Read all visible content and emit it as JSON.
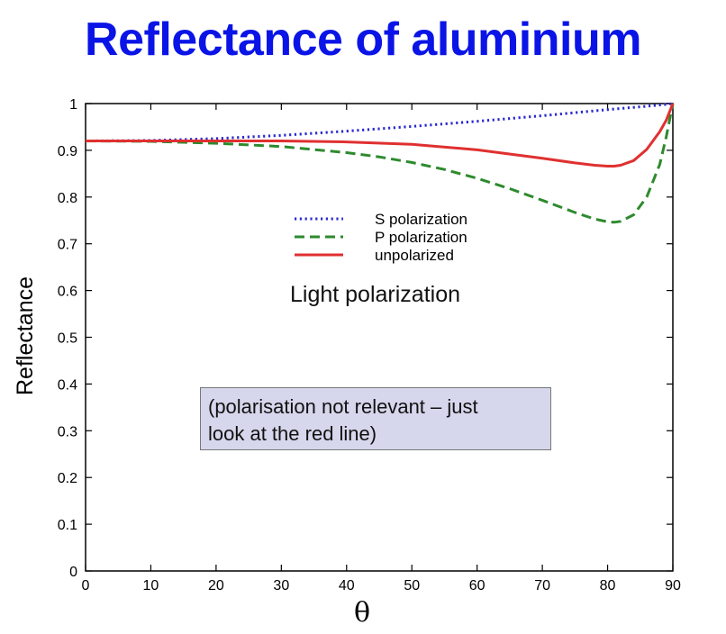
{
  "title": "Reflectance of aluminium",
  "colors": {
    "title": "#0a14e6",
    "s": "#2a2ad0",
    "p": "#2e8a2e",
    "u": "#e03030",
    "axis": "#000000"
  },
  "annotations": {
    "subtitle": "Light polarization",
    "callout_line1": "(polarisation not relevant – just",
    "callout_line2": "look at the red line)"
  },
  "chart_data": {
    "type": "line",
    "xlabel": "θ",
    "ylabel": "Reflectance",
    "xlim": [
      0,
      90
    ],
    "ylim": [
      0,
      1
    ],
    "xticks": [
      0,
      10,
      20,
      30,
      40,
      50,
      60,
      70,
      80,
      90
    ],
    "yticks": [
      0,
      0.1,
      0.2,
      0.3,
      0.4,
      0.5,
      0.6,
      0.7,
      0.8,
      0.9,
      1
    ],
    "grid": false,
    "legend": "upper-center",
    "series": [
      {
        "name": "S polarization",
        "style": "dotted",
        "color": "#2a2ad0",
        "x": [
          0,
          10,
          20,
          30,
          40,
          50,
          60,
          70,
          80,
          85,
          88,
          90
        ],
        "y": [
          0.92,
          0.921,
          0.925,
          0.932,
          0.941,
          0.951,
          0.962,
          0.974,
          0.987,
          0.993,
          0.997,
          1.0
        ]
      },
      {
        "name": "P polarization",
        "style": "dashed",
        "color": "#2e8a2e",
        "x": [
          0,
          10,
          20,
          30,
          40,
          45,
          50,
          55,
          60,
          65,
          70,
          75,
          78,
          80,
          81,
          82,
          84,
          86,
          88,
          89,
          90
        ],
        "y": [
          0.92,
          0.919,
          0.915,
          0.908,
          0.895,
          0.886,
          0.874,
          0.859,
          0.84,
          0.818,
          0.793,
          0.767,
          0.753,
          0.747,
          0.746,
          0.748,
          0.762,
          0.8,
          0.87,
          0.93,
          1.0
        ]
      },
      {
        "name": "unpolarized",
        "style": "solid",
        "color": "#e03030",
        "x": [
          0,
          10,
          20,
          30,
          40,
          50,
          60,
          70,
          75,
          78,
          80,
          81,
          82,
          84,
          86,
          88,
          89,
          90
        ],
        "y": [
          0.92,
          0.92,
          0.92,
          0.92,
          0.918,
          0.913,
          0.901,
          0.883,
          0.873,
          0.868,
          0.866,
          0.866,
          0.868,
          0.878,
          0.902,
          0.94,
          0.965,
          1.0
        ]
      }
    ]
  }
}
